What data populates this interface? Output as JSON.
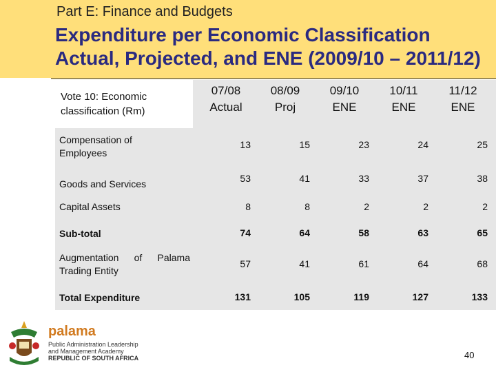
{
  "header": {
    "subtitle": "Part E: Finance and Budgets",
    "title_line1": "Expenditure per Economic Classification",
    "title_line2": "Actual, Projected, and ENE (2009/10 – 2011/12)"
  },
  "table": {
    "row_header": "Vote 10: Economic classification (Rm)",
    "columns": [
      {
        "line1": "07/08",
        "line2": "Actual"
      },
      {
        "line1": "08/09",
        "line2": "Proj"
      },
      {
        "line1": "09/10",
        "line2": "ENE"
      },
      {
        "line1": "10/11",
        "line2": "ENE"
      },
      {
        "line1": "11/12",
        "line2": "ENE"
      }
    ],
    "rows": [
      {
        "label": "Compensation of Employees",
        "values": [
          "13",
          "15",
          "23",
          "24",
          "25"
        ]
      },
      {
        "label": "Goods and Services",
        "values": [
          "53",
          "41",
          "33",
          "37",
          "38"
        ]
      },
      {
        "label": "Capital Assets",
        "values": [
          "8",
          "8",
          "2",
          "2",
          "2"
        ]
      },
      {
        "label": "Sub-total",
        "values": [
          "74",
          "64",
          "58",
          "63",
          "65"
        ]
      },
      {
        "label": "Augmentation of Palama Trading Entity",
        "values": [
          "57",
          "41",
          "61",
          "64",
          "68"
        ]
      },
      {
        "label": "Total Expenditure",
        "values": [
          "131",
          "105",
          "119",
          "127",
          "133"
        ]
      }
    ]
  },
  "footer": {
    "brand": "palama",
    "sub_line1": "Public Administration Leadership",
    "sub_line2": "and Management Academy",
    "sub_line3": "REPUBLIC OF SOUTH AFRICA",
    "page_number": "40"
  },
  "colors": {
    "header_bg": "#ffdf7a",
    "title": "#2a2a80",
    "table_bg": "#e6e6e6",
    "brand": "#d17a1f"
  }
}
